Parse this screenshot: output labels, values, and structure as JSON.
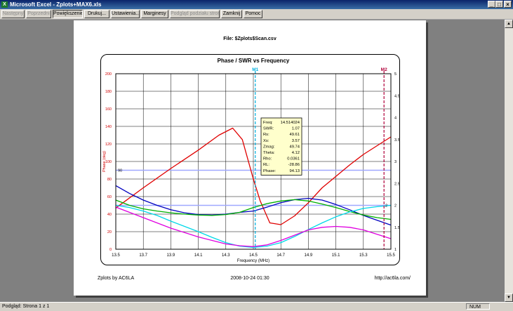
{
  "window": {
    "title": "Microsoft Excel - Zplots+MAX6.xls",
    "app_icon": "excel-icon"
  },
  "toolbar": {
    "buttons": [
      {
        "label": "Następny",
        "enabled": false
      },
      {
        "label": "Poprzedni",
        "enabled": false
      },
      {
        "label": "Powiększenie",
        "enabled": true
      },
      {
        "label": "Drukuj...",
        "enabled": true
      },
      {
        "label": "Ustawienia...",
        "enabled": true
      },
      {
        "label": "Marginesy",
        "enabled": true
      },
      {
        "label": "Podgląd podziału stron",
        "enabled": false
      },
      {
        "label": "Zamknij",
        "enabled": true
      },
      {
        "label": "Pomoc",
        "enabled": true
      }
    ]
  },
  "page": {
    "file_label": "File:  $Zplots$Scan.csv",
    "footer_left": "Zplots by AC6LA",
    "footer_center": "2008-10-24 01:30",
    "footer_right": "http://ac6la.com/"
  },
  "status": {
    "text": "Podgląd: Strona 1 z 1",
    "num": "NUM"
  },
  "chart_data": {
    "type": "line",
    "title": "Phase / SWR  vs  Frequency",
    "xlabel": "Frequency (MHz)",
    "ylabel": "Phase (deg)",
    "y2label": "SWR",
    "xlim": [
      13.5,
      15.5
    ],
    "ylim": [
      0,
      200
    ],
    "y2lim": [
      1,
      5
    ],
    "x_ticks": [
      "13.5",
      "13.7",
      "13.9",
      "14.1",
      "14.3",
      "14.5",
      "14.7",
      "14.9",
      "15.1",
      "15.3",
      "15.5"
    ],
    "y_ticks": [
      "0",
      "20",
      "40",
      "60",
      "80",
      "100",
      "120",
      "140",
      "160",
      "180",
      "200"
    ],
    "y2_ticks": [
      "1",
      "1.5",
      "2",
      "2.5",
      "3",
      "3.5",
      "4",
      "4.5",
      "5"
    ],
    "grid": true,
    "markers": [
      {
        "label": "M1",
        "x": 14.514,
        "color": "#00b0e0"
      },
      {
        "label": "M2",
        "x": 15.45,
        "color": "#b0003a"
      }
    ],
    "ref_lines": [
      {
        "axis": "left",
        "value": 90,
        "label": "90",
        "color": "#9fa8ff"
      },
      {
        "axis": "right",
        "value": 2,
        "label": "2",
        "color": "#9fa8ff"
      }
    ],
    "series": [
      {
        "color": "#e00000",
        "axis": "left",
        "x": [
          13.5,
          13.7,
          13.9,
          14.1,
          14.25,
          14.35,
          14.42,
          14.5,
          14.55,
          14.62,
          14.7,
          14.8,
          14.9,
          15.0,
          15.1,
          15.2,
          15.3,
          15.4,
          15.5
        ],
        "values": [
          47,
          70,
          92,
          113,
          130,
          138,
          125,
          80,
          55,
          30,
          28,
          38,
          53,
          70,
          83,
          96,
          108,
          118,
          128
        ]
      },
      {
        "color": "#0000c0",
        "axis": "right",
        "x": [
          13.5,
          13.6,
          13.7,
          13.8,
          13.9,
          14.0,
          14.1,
          14.2,
          14.3,
          14.4,
          14.5,
          14.6,
          14.7,
          14.8,
          14.9,
          15.0,
          15.1,
          15.2,
          15.3,
          15.4,
          15.5
        ],
        "values": [
          2.45,
          2.27,
          2.12,
          2.0,
          1.9,
          1.83,
          1.79,
          1.78,
          1.8,
          1.84,
          1.87,
          1.96,
          2.06,
          2.13,
          2.16,
          2.12,
          2.02,
          1.9,
          1.77,
          1.66,
          1.55
        ]
      },
      {
        "color": "#00b000",
        "axis": "right",
        "x": [
          13.5,
          13.6,
          13.7,
          13.8,
          13.9,
          14.0,
          14.1,
          14.2,
          14.3,
          14.4,
          14.5,
          14.6,
          14.7,
          14.8,
          14.9,
          15.0,
          15.1,
          15.2,
          15.3,
          15.4,
          15.5
        ],
        "values": [
          2.12,
          2.0,
          1.92,
          1.87,
          1.83,
          1.8,
          1.78,
          1.77,
          1.79,
          1.84,
          1.95,
          2.04,
          2.1,
          2.13,
          2.1,
          2.03,
          1.95,
          1.86,
          1.78,
          1.72,
          1.68
        ]
      },
      {
        "color": "#00d8e8",
        "axis": "right",
        "x": [
          13.5,
          13.6,
          13.7,
          13.8,
          13.9,
          14.0,
          14.1,
          14.2,
          14.3,
          14.4,
          14.5,
          14.6,
          14.7,
          14.8,
          14.9,
          15.0,
          15.1,
          15.2,
          15.3,
          15.4,
          15.5
        ],
        "values": [
          2.0,
          1.95,
          1.87,
          1.77,
          1.64,
          1.52,
          1.4,
          1.27,
          1.15,
          1.07,
          1.04,
          1.07,
          1.15,
          1.29,
          1.45,
          1.6,
          1.74,
          1.85,
          1.93,
          1.97,
          2.0
        ]
      },
      {
        "color": "#e000e0",
        "axis": "left",
        "x": [
          13.5,
          13.6,
          13.7,
          13.8,
          13.9,
          14.0,
          14.1,
          14.2,
          14.3,
          14.4,
          14.5,
          14.6,
          14.7,
          14.8,
          14.9,
          15.0,
          15.1,
          15.2,
          15.3,
          15.4,
          15.5
        ],
        "values": [
          48,
          42,
          36,
          30,
          24,
          19,
          14,
          10,
          6,
          4,
          3,
          5,
          10,
          16,
          22,
          25,
          26,
          25,
          22,
          17,
          12
        ]
      }
    ],
    "tooltip": {
      "rows": [
        {
          "label": "Freq:",
          "value": "14.514024"
        },
        {
          "label": "SWR:",
          "value": "1.07"
        },
        {
          "label": "Rs:",
          "value": "49.61"
        },
        {
          "label": "Xs:",
          "value": "3.57"
        },
        {
          "label": "Zmag:",
          "value": "49.74"
        },
        {
          "label": "Theta:",
          "value": "4.12"
        },
        {
          "label": "Rho:",
          "value": "0.0361"
        },
        {
          "label": "RL:",
          "value": "-28.86"
        },
        {
          "label": "Phase:",
          "value": "94.13"
        }
      ]
    }
  }
}
